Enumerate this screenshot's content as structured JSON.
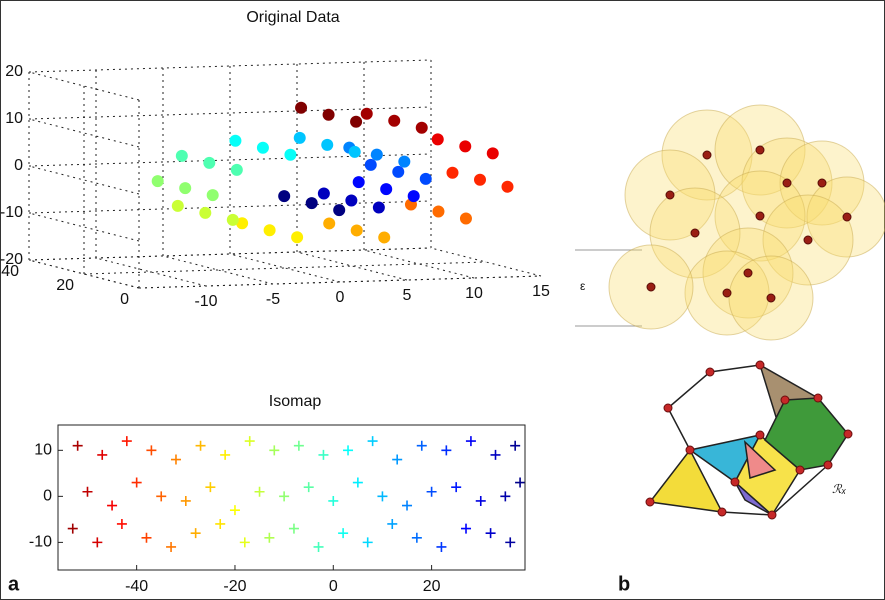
{
  "chart_data": [
    {
      "type": "scatter3d",
      "title": "Original Data",
      "colormap": "jet",
      "grid": true,
      "x": [
        -0.06,
        2.9,
        5.5,
        6.4,
        4.8,
        1.1,
        -3.7,
        -7.7,
        -9.5,
        -8.0,
        -3.2,
        3.3,
        9.4,
        12.5,
        11.4,
        6.1,
        1.2,
        -0.06,
        2.9,
        5.5,
        6.4,
        4.8,
        1.1,
        -3.7,
        -7.7,
        -9.5,
        -8.0,
        -3.2,
        3.3,
        9.4,
        12.5,
        11.4,
        6.1,
        1.2,
        -0.06,
        2.9,
        5.5,
        6.4,
        4.8,
        1.1,
        -3.7,
        -7.7,
        -9.5,
        -8.0,
        -3.2,
        3.3,
        9.4,
        12.5,
        11.4,
        6.1,
        1.2
      ],
      "y": [
        0,
        0,
        0,
        0,
        0,
        0,
        0,
        0,
        0,
        0,
        0,
        0,
        0,
        0,
        0,
        0,
        0,
        10,
        10,
        10,
        10,
        10,
        10,
        10,
        10,
        10,
        10,
        10,
        10,
        10,
        10,
        10,
        10,
        10,
        20,
        20,
        20,
        20,
        20,
        20,
        20,
        20,
        20,
        20,
        20,
        20,
        20,
        20,
        20,
        20,
        20
      ],
      "z": [
        -4.7,
        -4.4,
        -2.2,
        1.4,
        5.2,
        7.6,
        7.4,
        4.5,
        -0.7,
        -6.1,
        -10.2,
        -10.8,
        -7.3,
        -0.8,
        6.4,
        12.3,
        14.0,
        -4.7,
        -4.4,
        -2.2,
        1.4,
        5.2,
        7.6,
        7.4,
        4.5,
        -0.7,
        -6.1,
        -10.2,
        -10.8,
        -7.3,
        -0.8,
        6.4,
        12.3,
        14.0,
        -4.7,
        -4.4,
        -2.2,
        1.4,
        5.2,
        7.6,
        7.4,
        4.5,
        -0.7,
        -6.1,
        -10.2,
        -10.8,
        -7.3,
        -0.8,
        6.4,
        12.3,
        14.0
      ],
      "xlim": [
        -15,
        15
      ],
      "ylim": [
        0,
        40
      ],
      "zlim": [
        -20,
        20
      ],
      "xticks": [
        -10,
        -5,
        0,
        5,
        10,
        15
      ],
      "yticks": [
        0,
        20,
        40
      ],
      "zticks": [
        -20,
        -10,
        0,
        10,
        20
      ]
    },
    {
      "type": "scatter",
      "title": "Isomap",
      "colormap": "jet",
      "x": [
        -52,
        -47,
        -42,
        -37,
        -32,
        -27,
        -22,
        -17,
        -12,
        -7,
        -2,
        3,
        8,
        13,
        18,
        23,
        28,
        33,
        37,
        -50,
        -45,
        -40,
        -35,
        -30,
        -25,
        -20,
        -15,
        -10,
        -5,
        0,
        5,
        10,
        15,
        20,
        25,
        30,
        35,
        38,
        -53,
        -48,
        -43,
        -38,
        -33,
        -28,
        -23,
        -18,
        -13,
        -8,
        -3,
        2,
        7,
        12,
        17,
        22,
        27,
        32,
        36
      ],
      "y": [
        11,
        9,
        12,
        10,
        8,
        11,
        9,
        12,
        10,
        11,
        9,
        10,
        12,
        8,
        11,
        10,
        12,
        9,
        11,
        1,
        -2,
        3,
        0,
        -1,
        2,
        -3,
        1,
        0,
        2,
        -1,
        3,
        0,
        -2,
        1,
        2,
        -1,
        0,
        3,
        -7,
        -10,
        -6,
        -9,
        -11,
        -8,
        -6,
        -10,
        -9,
        -7,
        -11,
        -8,
        -10,
        -6,
        -9,
        -11,
        -7,
        -8,
        -10
      ],
      "xlim": [
        -56,
        39
      ],
      "ylim": [
        -16,
        15.5
      ],
      "xticks": [
        -40,
        -20,
        0,
        20
      ],
      "yticks": [
        -10,
        0,
        10
      ]
    }
  ],
  "panel_labels": {
    "a": "a",
    "b": "b"
  },
  "diagram": {
    "epsilon_label": "ε",
    "region_label": "ℛₓ"
  }
}
